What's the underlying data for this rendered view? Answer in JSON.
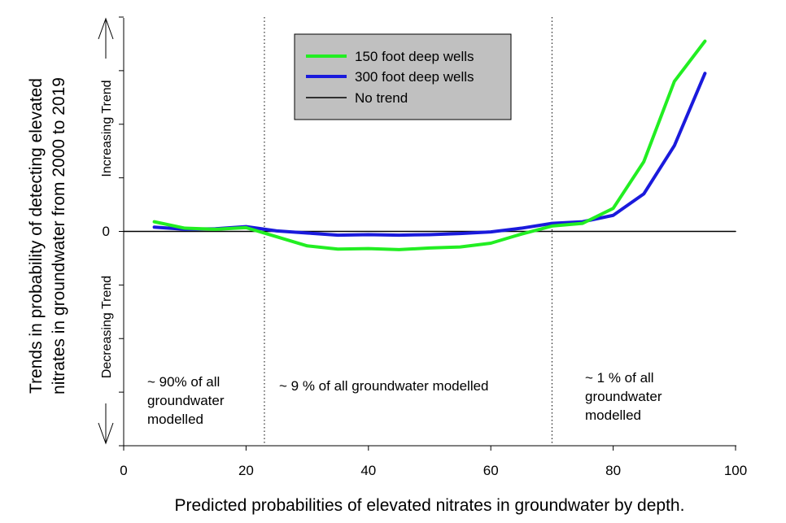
{
  "chart_data": {
    "type": "line",
    "title": "",
    "xlabel": "Predicted probabilities of elevated nitrates in groundwater by depth.",
    "ylabel_lines": [
      "Trends in probability of detecting elevated",
      "nitrates in groundwater from 2000 to 2019"
    ],
    "xlim": [
      0,
      100
    ],
    "ylim": [
      -4,
      4
    ],
    "xticks": [
      0,
      20,
      40,
      60,
      80,
      100
    ],
    "ytick_labels": [
      {
        "value": 0,
        "label": "0"
      }
    ],
    "increasing_label": "Increasing Trend",
    "decreasing_label": "Decreasing Trend",
    "grid": false,
    "legend_position": "top-center",
    "dividers": [
      23,
      70
    ],
    "series": [
      {
        "name": "150 foot deep wells",
        "color": "#22ee22",
        "x": [
          5,
          10,
          15,
          20,
          25,
          30,
          35,
          40,
          45,
          50,
          55,
          60,
          65,
          70,
          75,
          80,
          85,
          90,
          95
        ],
        "y": [
          0.18,
          0.06,
          0.04,
          0.07,
          -0.1,
          -0.27,
          -0.33,
          -0.32,
          -0.34,
          -0.31,
          -0.29,
          -0.22,
          -0.05,
          0.1,
          0.15,
          0.43,
          1.3,
          2.8,
          3.55
        ]
      },
      {
        "name": "300 foot deep wells",
        "color": "#1a1adc",
        "x": [
          5,
          10,
          15,
          20,
          25,
          30,
          35,
          40,
          45,
          50,
          55,
          60,
          65,
          70,
          75,
          80,
          85,
          90,
          95
        ],
        "y": [
          0.08,
          0.04,
          0.05,
          0.09,
          0.01,
          -0.03,
          -0.07,
          -0.06,
          -0.07,
          -0.06,
          -0.04,
          -0.01,
          0.06,
          0.15,
          0.18,
          0.3,
          0.7,
          1.6,
          2.95
        ]
      },
      {
        "name": "No trend",
        "color": "#000000",
        "x": [
          0,
          100
        ],
        "y": [
          0,
          0
        ]
      }
    ],
    "annotations": [
      {
        "lines": [
          "~ 90% of all",
          "groundwater",
          "modelled"
        ]
      },
      {
        "lines": [
          "~ 9 % of all groundwater modelled"
        ]
      },
      {
        "lines": [
          "~ 1 % of all",
          "groundwater",
          "modelled"
        ]
      }
    ]
  }
}
